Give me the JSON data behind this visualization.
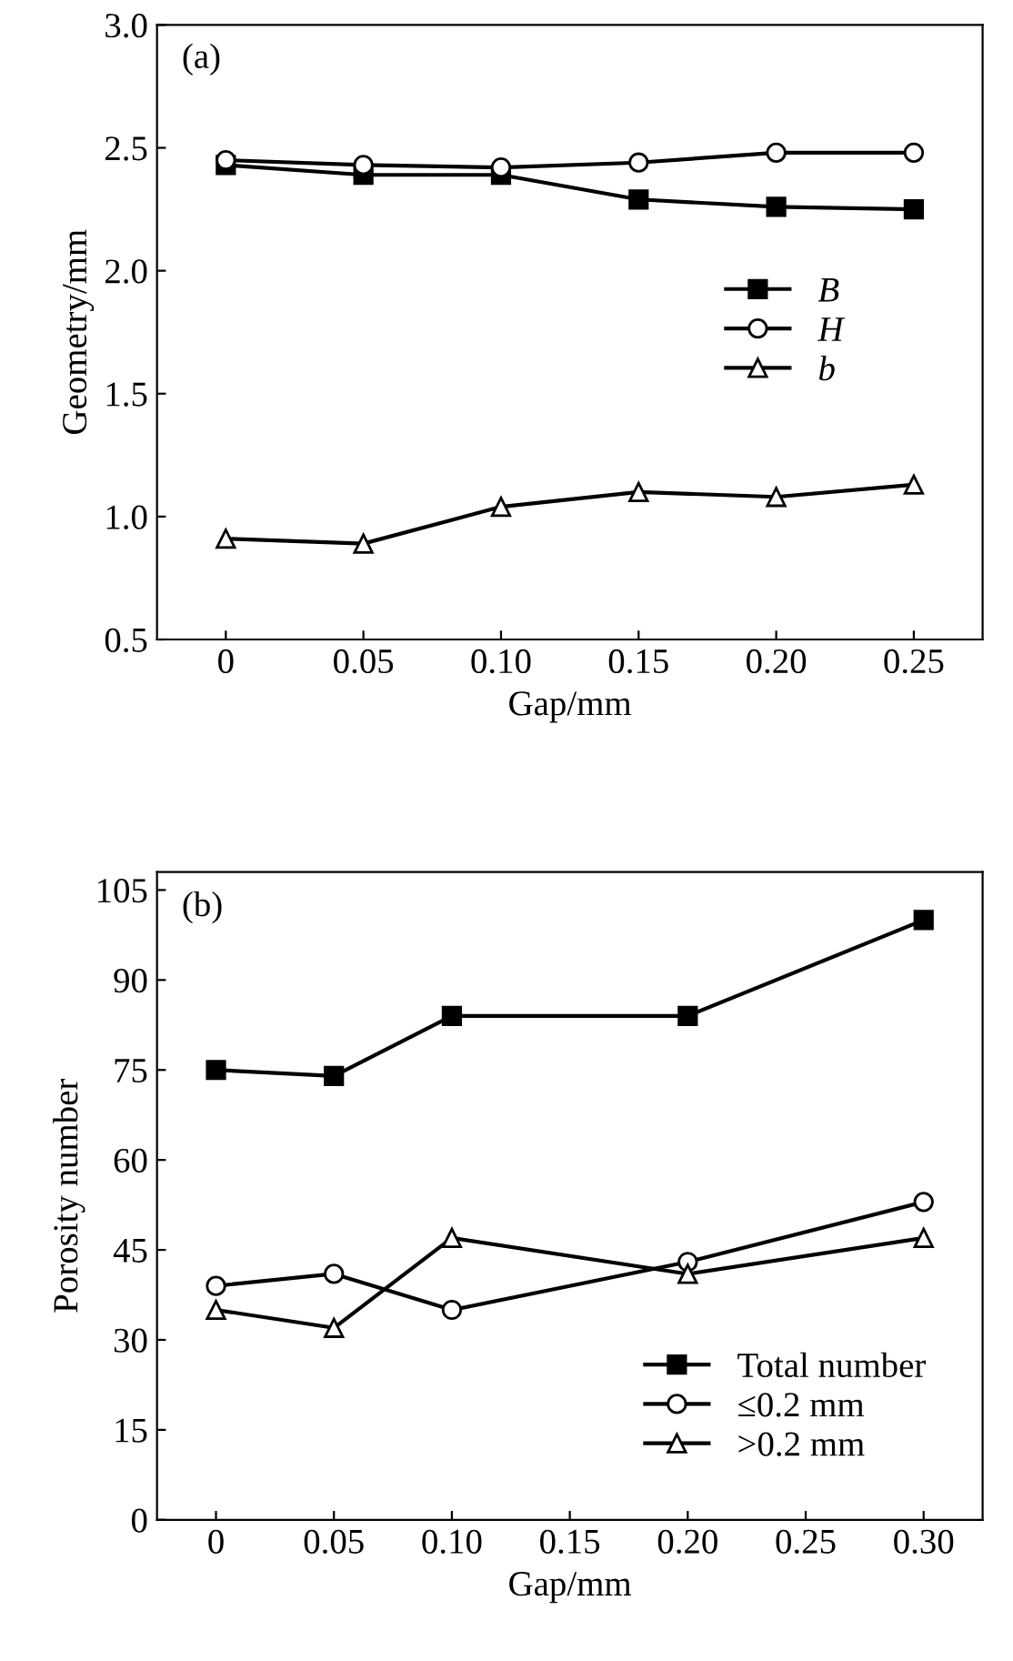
{
  "chart_data": [
    {
      "type": "line",
      "xlabel": "Gap/mm",
      "ylabel": "Geometry/mm",
      "annotations": [
        "(a)"
      ],
      "x": [
        0,
        0.05,
        0.1,
        0.15,
        0.2,
        0.25
      ],
      "xlim": [
        -0.025,
        0.275
      ],
      "xticks": [
        0,
        0.05,
        {
          "value": 0.1,
          "label": "0.10"
        },
        0.15,
        {
          "value": 0.2,
          "label": "0.20"
        },
        0.25
      ],
      "ylim": [
        0.5,
        3.0
      ],
      "yticks": [
        0.5,
        {
          "value": 1,
          "label": "1.0"
        },
        1.5,
        {
          "value": 2,
          "label": "2.0"
        },
        2.5,
        {
          "value": 3,
          "label": "3.0"
        }
      ],
      "legend": "center right",
      "grid": false,
      "line_style": "solid",
      "series": [
        {
          "name": "B",
          "color": "#000000",
          "marker": "square",
          "values": [
            2.43,
            2.39,
            2.39,
            2.29,
            2.26,
            2.25
          ]
        },
        {
          "name": "H",
          "color": "#000000",
          "marker": "circle",
          "values": [
            2.45,
            2.43,
            2.42,
            2.44,
            2.48,
            2.48
          ]
        },
        {
          "name": "b",
          "color": "#000000",
          "marker": "triangle",
          "values": [
            0.91,
            0.89,
            1.04,
            1.1,
            1.08,
            1.13
          ]
        }
      ]
    },
    {
      "type": "line",
      "xlabel": "Gap/mm",
      "ylabel": "Porosity number",
      "annotations": [
        "(b)"
      ],
      "x": [
        0,
        0.05,
        0.1,
        0.2,
        0.3
      ],
      "xlim": [
        -0.025,
        0.325
      ],
      "xticks": [
        0,
        0.05,
        {
          "value": 0.1,
          "label": "0.10"
        },
        0.15,
        {
          "value": 0.2,
          "label": "0.20"
        },
        0.25,
        {
          "value": 0.3,
          "label": "0.30"
        }
      ],
      "ylim": [
        0,
        108
      ],
      "yticks": [
        0,
        15,
        30,
        45,
        60,
        75,
        90,
        105
      ],
      "legend": "lower right",
      "grid": false,
      "line_style": "solid",
      "series": [
        {
          "name": "Total number",
          "color": "#000000",
          "marker": "square",
          "values": [
            75,
            74,
            84,
            84,
            100
          ]
        },
        {
          "name": "≤0.2 mm",
          "color": "#000000",
          "marker": "circle",
          "values": [
            39,
            41,
            35,
            43,
            53
          ]
        },
        {
          "name": ">0.2 mm",
          "color": "#000000",
          "marker": "triangle",
          "values": [
            35,
            32,
            47,
            41,
            47
          ]
        }
      ]
    }
  ]
}
